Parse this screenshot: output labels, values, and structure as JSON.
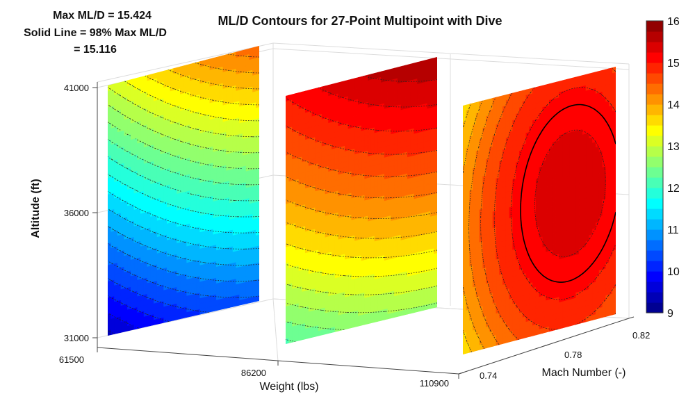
{
  "chart_data": {
    "type": "heatmap",
    "title": "ML/D Contours for 27-Point Multipoint with Dive",
    "annotation": [
      "Max ML/D = 15.424",
      "Solid Line = 98% Max ML/D",
      "= 15.116"
    ],
    "max_mld": 15.424,
    "solid_line_level": 15.116,
    "xlabel": "Weight (lbs)",
    "ylabel": "Mach Number (-)",
    "zlabel": "Altitude (ft)",
    "weight_ticks": [
      "61500",
      "86200",
      "110900"
    ],
    "weight_values": [
      61500,
      86200,
      110900
    ],
    "mach_ticks": [
      "0.74",
      "0.78",
      "0.82"
    ],
    "mach_range": [
      0.74,
      0.82
    ],
    "altitude_ticks": [
      "31000",
      "36000",
      "41000"
    ],
    "altitude_range": [
      31000,
      41000
    ],
    "colorbar": {
      "min": 9,
      "max": 16,
      "ticks": [
        "9",
        "10",
        "11",
        "12",
        "13",
        "14",
        "15",
        "16"
      ],
      "colormap": "jet"
    },
    "slices": [
      {
        "weight": 61500,
        "mld_range": [
          9.6,
          13.5
        ],
        "description_levels": "increases with altitude and mach"
      },
      {
        "weight": 86200,
        "mld_range": [
          13.1,
          15.2
        ],
        "description_levels": "increases with altitude"
      },
      {
        "weight": 110900,
        "mld_range": [
          13.4,
          15.424
        ],
        "description_levels": "peak near mid mach, mid altitude"
      }
    ],
    "grid": true
  }
}
